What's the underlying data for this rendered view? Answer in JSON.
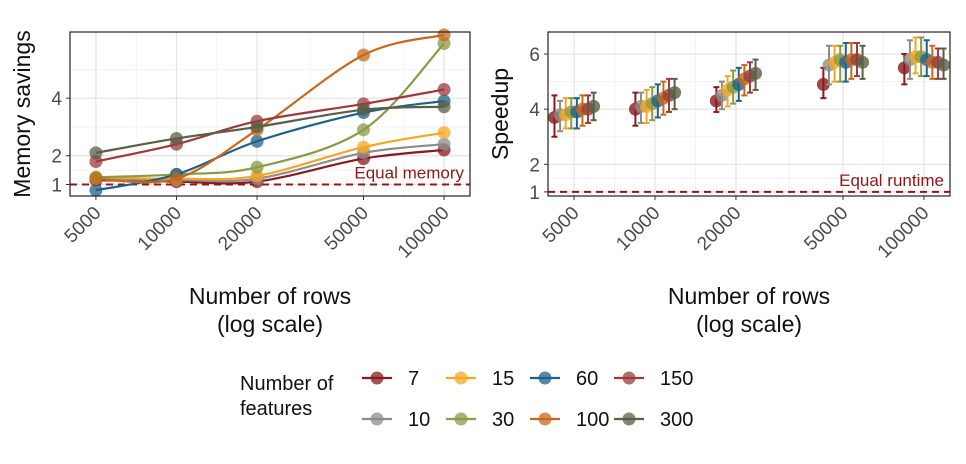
{
  "chart_data": [
    {
      "type": "line",
      "xlabel_lines": [
        "Number of rows",
        "(log scale)"
      ],
      "ylabel": "Memory savings",
      "x_scale": "log",
      "x": [
        5000,
        10000,
        20000,
        50000,
        100000
      ],
      "x_tick_labels": [
        "5000",
        "10000",
        "20000",
        "50000",
        "100000"
      ],
      "y_ticks": [
        1,
        2,
        4
      ],
      "ylim": [
        0.6,
        6.3
      ],
      "reference_line": {
        "y": 1,
        "label": "Equal memory",
        "color": "#8b1a1a"
      },
      "grid": true,
      "series": [
        {
          "name": "7",
          "values": [
            1.15,
            1.1,
            1.1,
            1.9,
            2.2
          ]
        },
        {
          "name": "10",
          "values": [
            1.2,
            1.15,
            1.2,
            2.1,
            2.4
          ]
        },
        {
          "name": "15",
          "values": [
            1.25,
            1.2,
            1.3,
            2.3,
            2.8
          ]
        },
        {
          "name": "30",
          "values": [
            1.25,
            1.35,
            1.6,
            2.9,
            5.9
          ]
        },
        {
          "name": "60",
          "values": [
            0.8,
            1.35,
            2.5,
            3.5,
            3.9
          ]
        },
        {
          "name": "100",
          "values": [
            1.2,
            1.2,
            2.9,
            5.5,
            6.2
          ]
        },
        {
          "name": "150",
          "values": [
            1.8,
            2.4,
            3.2,
            3.8,
            4.3
          ]
        },
        {
          "name": "300",
          "values": [
            2.1,
            2.6,
            3.0,
            3.6,
            3.7
          ]
        }
      ]
    },
    {
      "type": "scatter",
      "error_bars": true,
      "xlabel_lines": [
        "Number of rows",
        "(log scale)"
      ],
      "ylabel": "Speedup",
      "x_scale": "log",
      "x": [
        5000,
        10000,
        20000,
        50000,
        100000
      ],
      "x_tick_labels": [
        "5000",
        "10000",
        "20000",
        "50000",
        "100000"
      ],
      "y_ticks": [
        1,
        2,
        4,
        6
      ],
      "ylim": [
        0.85,
        6.8
      ],
      "reference_line": {
        "y": 1,
        "label": "Equal runtime",
        "color": "#8b1a1a"
      },
      "grid": true,
      "series": [
        {
          "name": "7",
          "values": [
            3.7,
            4.0,
            4.3,
            4.9,
            5.5
          ],
          "lower": [
            3.0,
            3.4,
            3.9,
            4.4,
            4.9
          ],
          "upper": [
            4.5,
            4.6,
            4.8,
            5.5,
            6.0
          ]
        },
        {
          "name": "10",
          "values": [
            3.8,
            4.1,
            4.5,
            5.6,
            5.8
          ],
          "lower": [
            3.2,
            3.5,
            4.0,
            4.9,
            5.1
          ],
          "upper": [
            4.3,
            4.6,
            5.0,
            6.3,
            6.5
          ]
        },
        {
          "name": "15",
          "values": [
            3.8,
            4.1,
            4.7,
            5.7,
            5.9
          ],
          "lower": [
            3.3,
            3.5,
            4.1,
            5.0,
            5.3
          ],
          "upper": [
            4.4,
            4.7,
            5.2,
            6.3,
            6.6
          ]
        },
        {
          "name": "30",
          "values": [
            3.9,
            4.2,
            4.8,
            5.8,
            5.9
          ],
          "lower": [
            3.3,
            3.6,
            4.2,
            5.0,
            5.2
          ],
          "upper": [
            4.4,
            4.8,
            5.4,
            6.3,
            6.6
          ]
        },
        {
          "name": "60",
          "values": [
            3.9,
            4.3,
            4.9,
            5.7,
            5.8
          ],
          "lower": [
            3.3,
            3.7,
            4.3,
            5.0,
            5.2
          ],
          "upper": [
            4.4,
            4.9,
            5.5,
            6.4,
            6.5
          ]
        },
        {
          "name": "100",
          "values": [
            4.0,
            4.4,
            5.1,
            5.8,
            5.7
          ],
          "lower": [
            3.4,
            3.8,
            4.5,
            5.1,
            5.1
          ],
          "upper": [
            4.5,
            5.0,
            5.6,
            6.4,
            6.3
          ]
        },
        {
          "name": "150",
          "values": [
            4.0,
            4.5,
            5.2,
            5.8,
            5.7
          ],
          "lower": [
            3.5,
            3.9,
            4.6,
            5.2,
            5.1
          ],
          "upper": [
            4.5,
            5.1,
            5.7,
            6.4,
            6.2
          ]
        },
        {
          "name": "300",
          "values": [
            4.1,
            4.6,
            5.3,
            5.7,
            5.6
          ],
          "lower": [
            3.6,
            4.0,
            4.7,
            5.1,
            5.1
          ],
          "upper": [
            4.6,
            5.1,
            5.8,
            6.3,
            6.2
          ]
        }
      ]
    }
  ],
  "legend": {
    "title_lines": [
      "Number of",
      "features"
    ],
    "items": [
      {
        "label": "7",
        "color": "#8b1a1a"
      },
      {
        "label": "10",
        "color": "#8c8c8c"
      },
      {
        "label": "15",
        "color": "#f5a623"
      },
      {
        "label": "30",
        "color": "#8a9a45"
      },
      {
        "label": "60",
        "color": "#1f6287"
      },
      {
        "label": "100",
        "color": "#c7681e"
      },
      {
        "label": "150",
        "color": "#9b3b3b"
      },
      {
        "label": "300",
        "color": "#5a5f45"
      }
    ]
  }
}
